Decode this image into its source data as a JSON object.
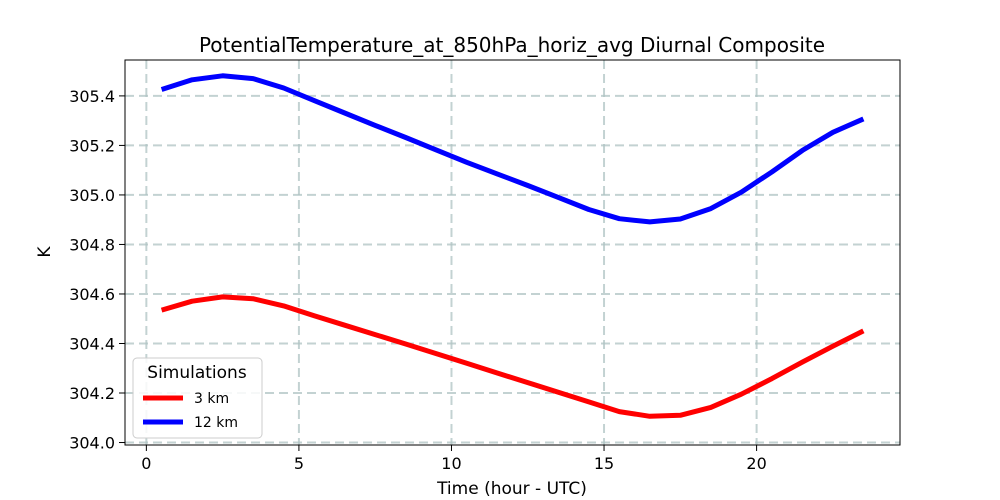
{
  "chart_data": {
    "type": "line",
    "title": "PotentialTemperature_at_850hPa_horiz_avg Diurnal Composite",
    "xlabel": "Time (hour - UTC)",
    "ylabel": "K",
    "xlim": [
      -0.7,
      24.7
    ],
    "ylim": [
      303.99,
      305.545
    ],
    "xticks": [
      0,
      5,
      10,
      15,
      20
    ],
    "yticks": [
      304.0,
      304.2,
      304.4,
      304.6,
      304.8,
      305.0,
      305.2,
      305.4
    ],
    "ytick_labels": [
      "304.0",
      "304.2",
      "304.4",
      "304.6",
      "304.8",
      "305.0",
      "305.2",
      "305.4"
    ],
    "grid": true,
    "legend": {
      "title": "Simulations",
      "placement": "lower-left"
    },
    "x": [
      0.5,
      1.5,
      2.5,
      3.5,
      4.5,
      5.5,
      6.5,
      7.5,
      8.5,
      9.5,
      10.5,
      11.5,
      12.5,
      13.5,
      14.5,
      15.5,
      16.5,
      17.5,
      18.5,
      19.5,
      20.5,
      21.5,
      22.5,
      23.5
    ],
    "series": [
      {
        "name": "3 km",
        "color": "#ff0000",
        "values": [
          304.535,
          304.571,
          304.588,
          304.581,
          304.552,
          304.512,
          304.474,
          304.436,
          304.398,
          304.359,
          304.32,
          304.281,
          304.242,
          304.203,
          304.164,
          304.125,
          304.106,
          304.11,
          304.142,
          304.195,
          304.258,
          304.325,
          304.389,
          304.451
        ]
      },
      {
        "name": "12 km",
        "color": "#0000ff",
        "values": [
          305.426,
          305.465,
          305.481,
          305.47,
          305.432,
          305.381,
          305.331,
          305.281,
          305.232,
          305.182,
          305.132,
          305.085,
          305.038,
          304.99,
          304.941,
          304.904,
          304.891,
          304.903,
          304.945,
          305.011,
          305.093,
          305.18,
          305.253,
          305.307
        ]
      }
    ]
  }
}
